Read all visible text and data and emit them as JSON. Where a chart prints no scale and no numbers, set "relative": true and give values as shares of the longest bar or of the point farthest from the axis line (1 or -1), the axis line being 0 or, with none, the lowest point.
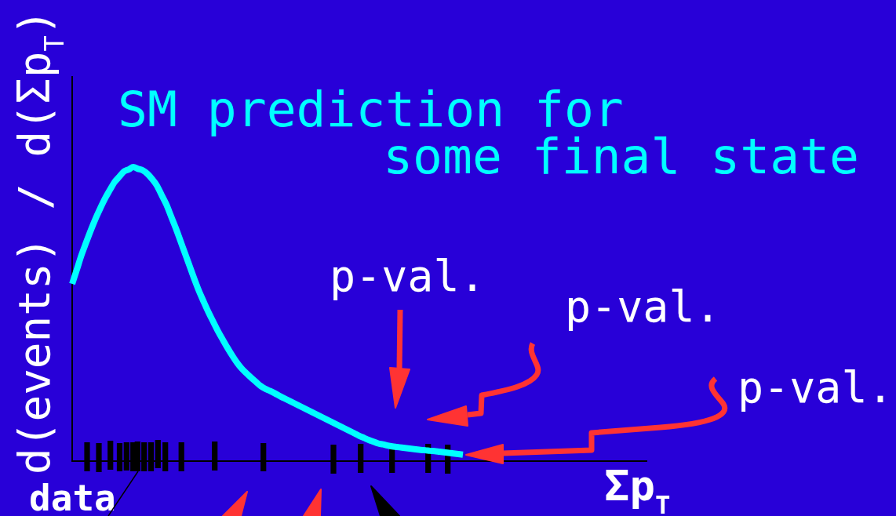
{
  "chart_data": {
    "type": "line",
    "relative": true,
    "xlabel": "Σp$_{T}$",
    "ylabel": "d(events) / d(Σp$_{T}$)",
    "annotations": [
      "p-val.",
      "p-val.",
      "p-val.",
      "data"
    ],
    "categories": [
      null,
      null,
      null,
      null,
      null,
      null,
      null,
      null,
      null,
      null,
      null,
      null,
      null,
      null,
      null,
      null,
      null,
      null,
      null,
      null,
      null,
      null,
      null,
      null,
      null,
      null,
      null,
      null,
      null,
      null,
      null,
      null,
      null,
      null,
      null,
      null,
      null,
      null,
      null,
      null,
      null,
      null,
      null,
      null,
      null,
      null,
      null,
      null,
      null,
      null,
      null,
      null,
      null,
      null,
      null,
      null,
      null,
      null,
      null,
      null,
      null,
      null,
      null,
      null,
      null,
      null,
      null,
      null,
      null,
      null,
      null,
      null,
      null,
      null,
      null,
      null,
      null,
      null,
      null,
      null,
      null,
      null,
      null,
      null,
      null,
      null,
      null,
      null,
      null,
      null,
      null,
      null,
      null,
      null,
      null,
      null,
      null,
      null,
      null,
      null,
      null,
      null,
      null,
      null,
      null,
      null,
      null,
      null,
      null,
      null,
      null,
      null,
      null,
      null,
      null,
      null,
      null,
      null,
      null,
      null,
      null,
      null,
      null
    ],
    "series": [
      {
        "name": "SM prediction for\nsome final state",
        "color": "#00ffff",
        "values": [
          0.603,
          0.652,
          0.702,
          0.745,
          0.787,
          0.826,
          0.861,
          0.894,
          0.922,
          0.949,
          0.967,
          0.985,
          0.992,
          1,
          0.994,
          0.989,
          0.977,
          0.959,
          0.937,
          0.905,
          0.873,
          0.833,
          0.793,
          0.749,
          0.705,
          0.661,
          0.617,
          0.576,
          0.54,
          0.505,
          0.473,
          0.441,
          0.413,
          0.385,
          0.359,
          0.335,
          0.315,
          0.299,
          0.284,
          0.27,
          0.256,
          0.246,
          0.239,
          0.231,
          0.222,
          0.214,
          0.206,
          0.198,
          0.19,
          0.182,
          0.174,
          0.166,
          0.158,
          0.15,
          0.142,
          0.134,
          0.126,
          0.118,
          0.11,
          0.102,
          0.094,
          0.086,
          0.079,
          0.072,
          0.066,
          0.06,
          0.057,
          0.053,
          0.05,
          0.048,
          0.046,
          0.044,
          0.042,
          0.04,
          0.038,
          0.037,
          0.035,
          0.034,
          0.032,
          0.03,
          0.028,
          0.026,
          0.024,
          0.022,
          null,
          null,
          null,
          null,
          null,
          null,
          null,
          null,
          null,
          null,
          null,
          null,
          null,
          null,
          null,
          null,
          null,
          null,
          null,
          null,
          null,
          null,
          null,
          null,
          null,
          null,
          null,
          null,
          null,
          null,
          null,
          null,
          null,
          null,
          null,
          null,
          null,
          null,
          null
        ]
      }
    ]
  }
}
